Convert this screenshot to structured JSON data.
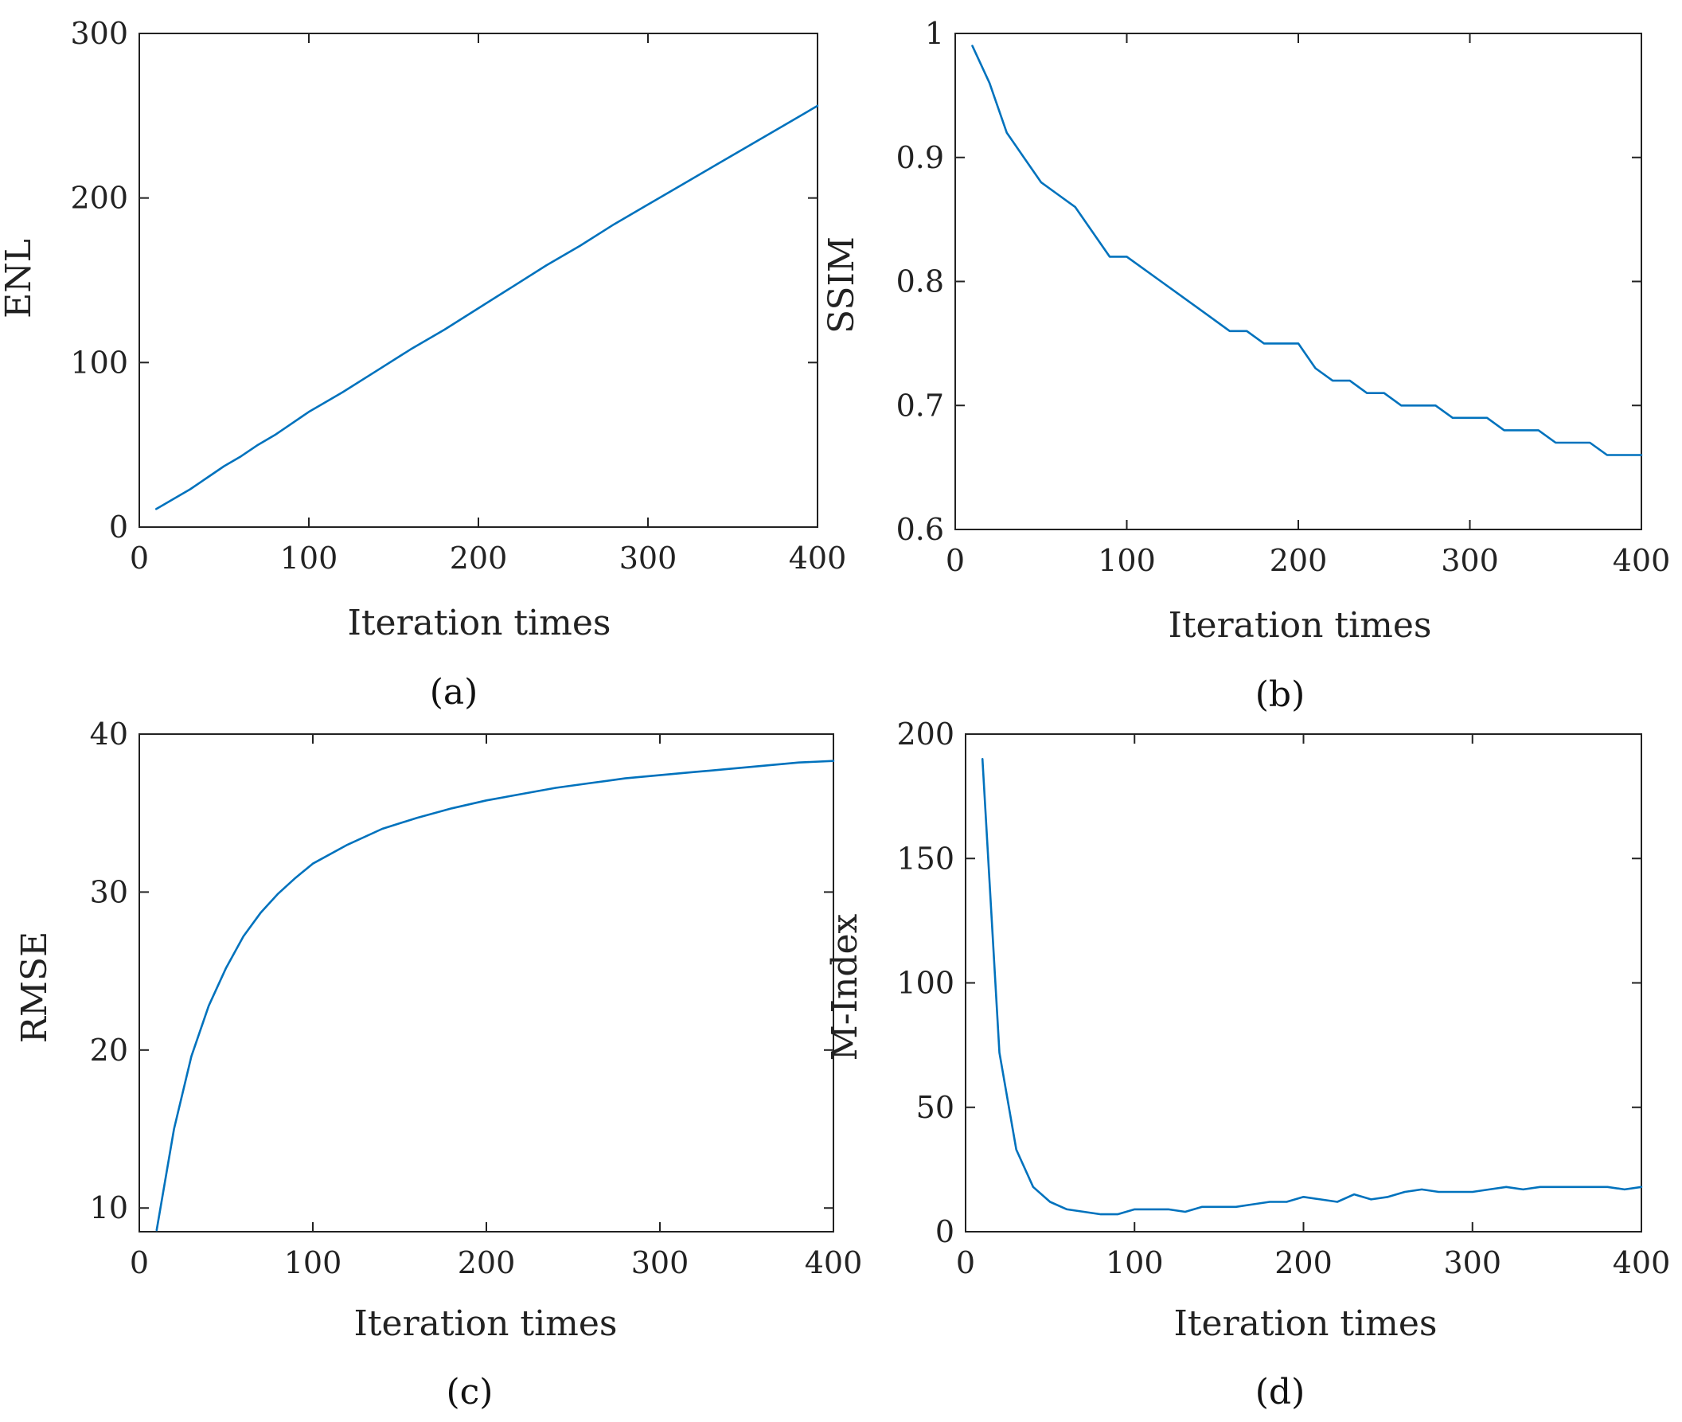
{
  "colors": {
    "line": "#0072BD",
    "axis": "#222222"
  },
  "chart_data": [
    {
      "id": "a",
      "type": "line",
      "caption": "(a)",
      "xlabel": "Iteration times",
      "ylabel": "ENL",
      "xlim": [
        0,
        400
      ],
      "ylim": [
        0,
        300
      ],
      "xticks": [
        0,
        100,
        200,
        300,
        400
      ],
      "yticks": [
        0,
        100,
        200,
        300
      ],
      "x": [
        10,
        20,
        30,
        40,
        50,
        60,
        70,
        80,
        90,
        100,
        120,
        140,
        160,
        180,
        200,
        220,
        240,
        260,
        280,
        300,
        320,
        340,
        360,
        380,
        400
      ],
      "y": [
        11,
        17,
        23,
        30,
        37,
        43,
        50,
        56,
        63,
        70,
        82,
        95,
        108,
        120,
        133,
        146,
        159,
        171,
        184,
        196,
        208,
        220,
        232,
        244,
        256
      ]
    },
    {
      "id": "b",
      "type": "line",
      "caption": "(b)",
      "xlabel": "Iteration times",
      "ylabel": "SSIM",
      "xlim": [
        0,
        400
      ],
      "ylim": [
        0.6,
        1
      ],
      "xticks": [
        0,
        100,
        200,
        300,
        400
      ],
      "yticks": [
        0.6,
        0.7,
        0.8,
        0.9,
        1
      ],
      "x": [
        10,
        20,
        30,
        40,
        50,
        60,
        70,
        80,
        90,
        100,
        110,
        120,
        130,
        140,
        150,
        160,
        170,
        180,
        190,
        200,
        210,
        220,
        230,
        240,
        250,
        260,
        270,
        280,
        290,
        300,
        310,
        320,
        330,
        340,
        350,
        360,
        370,
        380,
        390,
        400
      ],
      "y": [
        0.99,
        0.96,
        0.92,
        0.9,
        0.88,
        0.87,
        0.86,
        0.84,
        0.82,
        0.82,
        0.81,
        0.8,
        0.79,
        0.78,
        0.77,
        0.76,
        0.76,
        0.75,
        0.75,
        0.75,
        0.73,
        0.72,
        0.72,
        0.71,
        0.71,
        0.7,
        0.7,
        0.7,
        0.69,
        0.69,
        0.69,
        0.68,
        0.68,
        0.68,
        0.67,
        0.67,
        0.67,
        0.66,
        0.66,
        0.66
      ]
    },
    {
      "id": "c",
      "type": "line",
      "caption": "(c)",
      "xlabel": "Iteration times",
      "ylabel": "RMSE",
      "xlim": [
        0,
        400
      ],
      "ylim": [
        8.5,
        40
      ],
      "xticks": [
        0,
        100,
        200,
        300,
        400
      ],
      "yticks": [
        10,
        20,
        30,
        40
      ],
      "x": [
        10,
        20,
        30,
        40,
        50,
        60,
        70,
        80,
        90,
        100,
        120,
        140,
        160,
        180,
        200,
        220,
        240,
        260,
        280,
        300,
        320,
        340,
        360,
        380,
        400
      ],
      "y": [
        8.6,
        15.0,
        19.6,
        22.8,
        25.2,
        27.2,
        28.7,
        29.9,
        30.9,
        31.8,
        33.0,
        34.0,
        34.7,
        35.3,
        35.8,
        36.2,
        36.6,
        36.9,
        37.2,
        37.4,
        37.6,
        37.8,
        38.0,
        38.2,
        38.3
      ]
    },
    {
      "id": "d",
      "type": "line",
      "caption": "(d)",
      "xlabel": "Iteration times",
      "ylabel": "M-Index",
      "xlim": [
        0,
        400
      ],
      "ylim": [
        0,
        200
      ],
      "xticks": [
        0,
        100,
        200,
        300,
        400
      ],
      "yticks": [
        0,
        50,
        100,
        150,
        200
      ],
      "x": [
        10,
        20,
        30,
        40,
        50,
        60,
        70,
        80,
        90,
        100,
        110,
        120,
        130,
        140,
        150,
        160,
        170,
        180,
        190,
        200,
        210,
        220,
        230,
        240,
        250,
        260,
        270,
        280,
        290,
        300,
        310,
        320,
        330,
        340,
        350,
        360,
        370,
        380,
        390,
        400
      ],
      "y": [
        190,
        72,
        33,
        18,
        12,
        9,
        8,
        7,
        7,
        9,
        9,
        9,
        8,
        10,
        10,
        10,
        11,
        12,
        12,
        14,
        13,
        12,
        15,
        13,
        14,
        16,
        17,
        16,
        16,
        16,
        17,
        18,
        17,
        18,
        18,
        18,
        18,
        18,
        17,
        18
      ]
    }
  ]
}
